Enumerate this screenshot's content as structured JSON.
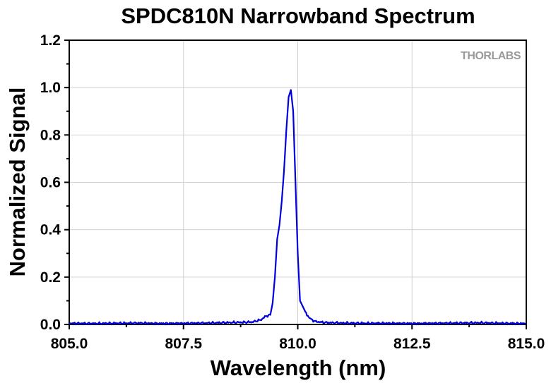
{
  "chart_data": {
    "type": "line",
    "title": "SPDC810N Narrowband Spectrum",
    "xlabel": "Wavelength (nm)",
    "ylabel": "Normalized Signal",
    "xlim": [
      805.0,
      815.0
    ],
    "ylim": [
      0.0,
      1.2
    ],
    "x_ticks": [
      "805.0",
      "807.5",
      "810.0",
      "812.5",
      "815.0"
    ],
    "y_ticks": [
      "0.0",
      "0.2",
      "0.4",
      "0.6",
      "0.8",
      "1.0",
      "1.2"
    ],
    "grid": true,
    "line_color": "#0000dd",
    "watermark": "THORLABS",
    "series": [
      {
        "x": [
          805.0,
          805.5,
          806.0,
          806.5,
          807.0,
          807.5,
          808.0,
          808.5,
          809.0,
          809.2,
          809.3,
          809.4,
          809.45,
          809.5,
          809.55,
          809.6,
          809.65,
          809.7,
          809.75,
          809.8,
          809.85,
          809.9,
          809.95,
          810.0,
          810.05,
          810.1,
          810.15,
          810.2,
          810.3,
          810.4,
          810.6,
          811.0,
          811.5,
          812.0,
          812.5,
          813.0,
          813.5,
          814.0,
          814.5,
          815.0
        ],
        "y": [
          0.005,
          0.004,
          0.005,
          0.006,
          0.004,
          0.005,
          0.006,
          0.008,
          0.01,
          0.02,
          0.035,
          0.04,
          0.09,
          0.2,
          0.36,
          0.42,
          0.52,
          0.65,
          0.82,
          0.96,
          0.99,
          0.9,
          0.6,
          0.3,
          0.1,
          0.08,
          0.06,
          0.04,
          0.02,
          0.012,
          0.008,
          0.006,
          0.005,
          0.005,
          0.004,
          0.005,
          0.006,
          0.007,
          0.005,
          0.004
        ]
      }
    ]
  }
}
